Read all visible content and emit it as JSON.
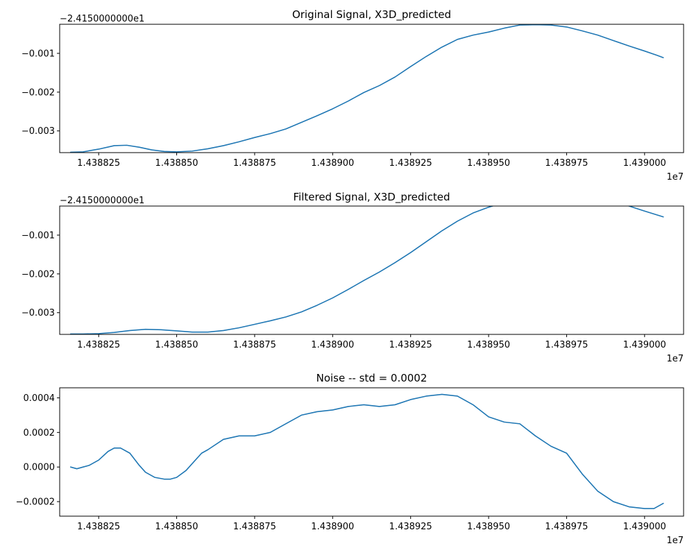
{
  "figure": {
    "line_color": "#1f77b4",
    "background": "#ffffff",
    "grid": false
  },
  "chart_data": [
    {
      "type": "line",
      "title": "Original Signal, X3D_predicted",
      "xlabel": "",
      "ylabel": "",
      "x_offset_label": "1e7",
      "y_offset_label": "−2.4150000000e1",
      "x_scale": 10000000,
      "y_offset": -24.15,
      "xlim": [
        1.4388125,
        1.4390125
      ],
      "ylim": [
        -0.00356,
        -0.00025
      ],
      "x_ticks": [
        1.438825,
        1.43885,
        1.438875,
        1.4389,
        1.438925,
        1.43895,
        1.438975,
        1.439
      ],
      "x_tick_labels": [
        "1.438825",
        "1.438850",
        "1.438875",
        "1.438900",
        "1.438925",
        "1.438950",
        "1.438975",
        "1.439000"
      ],
      "y_ticks": [
        -0.003,
        -0.002,
        -0.001
      ],
      "y_tick_labels": [
        "−0.003",
        "−0.002",
        "−0.001"
      ],
      "series": [
        {
          "x": [
            1.438816,
            1.43882,
            1.438825,
            1.43883,
            1.438834,
            1.438838,
            1.438842,
            1.438846,
            1.43885,
            1.438855,
            1.43886,
            1.438865,
            1.43887,
            1.438875,
            1.43888,
            1.438885,
            1.43889,
            1.438895,
            1.4389,
            1.438905,
            1.43891,
            1.438915,
            1.43892,
            1.438925,
            1.43893,
            1.438935,
            1.43894,
            1.438945,
            1.43895,
            1.438955,
            1.43896,
            1.438965,
            1.43897,
            1.438975,
            1.43898,
            1.438985,
            1.43899,
            1.438995,
            1.439,
            1.439004,
            1.439006
          ],
          "y": [
            -0.00355,
            -0.00354,
            -0.00347,
            -0.00338,
            -0.00337,
            -0.00342,
            -0.00349,
            -0.00353,
            -0.00354,
            -0.00352,
            -0.00346,
            -0.00338,
            -0.00328,
            -0.00317,
            -0.00307,
            -0.00295,
            -0.00278,
            -0.00261,
            -0.00243,
            -0.00223,
            -0.00201,
            -0.00183,
            -0.00161,
            -0.00134,
            -0.00108,
            -0.00084,
            -0.00064,
            -0.00053,
            -0.00045,
            -0.00035,
            -0.00027,
            -0.00026,
            -0.00027,
            -0.00032,
            -0.00042,
            -0.00053,
            -0.00067,
            -0.00081,
            -0.00094,
            -0.00105,
            -0.00111
          ]
        }
      ]
    },
    {
      "type": "line",
      "title": "Filtered Signal, X3D_predicted",
      "xlabel": "",
      "ylabel": "",
      "x_offset_label": "1e7",
      "y_offset_label": "−2.4150000000e1",
      "x_scale": 10000000,
      "y_offset": -24.15,
      "xlim": [
        1.4388125,
        1.4390125
      ],
      "ylim": [
        -0.00356,
        -0.00025
      ],
      "x_ticks": [
        1.438825,
        1.43885,
        1.438875,
        1.4389,
        1.438925,
        1.43895,
        1.438975,
        1.439
      ],
      "x_tick_labels": [
        "1.438825",
        "1.438850",
        "1.438875",
        "1.438900",
        "1.438925",
        "1.438950",
        "1.438975",
        "1.439000"
      ],
      "y_ticks": [
        -0.003,
        -0.002,
        -0.001
      ],
      "y_tick_labels": [
        "−0.003",
        "−0.002",
        "−0.001"
      ],
      "series": [
        {
          "x": [
            1.438816,
            1.43882,
            1.438825,
            1.43883,
            1.438835,
            1.43884,
            1.438845,
            1.43885,
            1.438855,
            1.43886,
            1.438865,
            1.43887,
            1.438875,
            1.43888,
            1.438885,
            1.43889,
            1.438895,
            1.4389,
            1.438905,
            1.43891,
            1.438915,
            1.43892,
            1.438925,
            1.43893,
            1.438935,
            1.43894,
            1.438945,
            1.43895,
            1.438955,
            1.43896,
            1.438965,
            1.43897,
            1.438975,
            1.43898,
            1.438985,
            1.43899,
            1.438995,
            1.439,
            1.439006
          ],
          "y": [
            -0.00355,
            -0.00355,
            -0.00354,
            -0.00351,
            -0.00346,
            -0.00343,
            -0.00344,
            -0.00347,
            -0.0035,
            -0.0035,
            -0.00346,
            -0.00339,
            -0.0033,
            -0.00321,
            -0.00311,
            -0.00298,
            -0.00281,
            -0.00262,
            -0.0024,
            -0.00217,
            -0.00195,
            -0.00171,
            -0.00145,
            -0.00117,
            -0.00089,
            -0.00064,
            -0.00043,
            -0.00028,
            -0.00016,
            -8e-05,
            -2e-05,
            1e-05,
            2e-05,
            1e-05,
            -5e-05,
            -0.00014,
            -0.00025,
            -0.00038,
            -0.00053
          ]
        }
      ]
    },
    {
      "type": "line",
      "title": "Noise -- std = 0.0002",
      "xlabel": "",
      "ylabel": "",
      "x_offset_label": "1e7",
      "y_offset_label": "",
      "x_scale": 10000000,
      "y_offset": 0,
      "xlim": [
        1.4388125,
        1.4390125
      ],
      "ylim": [
        -0.000284,
        0.000458
      ],
      "x_ticks": [
        1.438825,
        1.43885,
        1.438875,
        1.4389,
        1.438925,
        1.43895,
        1.438975,
        1.439
      ],
      "x_tick_labels": [
        "1.438825",
        "1.438850",
        "1.438875",
        "1.438900",
        "1.438925",
        "1.438950",
        "1.438975",
        "1.439000"
      ],
      "y_ticks": [
        -0.0002,
        0,
        0.0002,
        0.0004
      ],
      "y_tick_labels": [
        "−0.0002",
        "0.0000",
        "0.0002",
        "0.0004"
      ],
      "series": [
        {
          "x": [
            1.438816,
            1.438818,
            1.43882,
            1.438822,
            1.438825,
            1.438828,
            1.43883,
            1.438832,
            1.438835,
            1.438838,
            1.43884,
            1.438843,
            1.438846,
            1.438848,
            1.43885,
            1.438853,
            1.438856,
            1.438858,
            1.43886,
            1.438865,
            1.43887,
            1.438875,
            1.43888,
            1.438885,
            1.43889,
            1.438895,
            1.4389,
            1.438905,
            1.43891,
            1.438915,
            1.43892,
            1.438925,
            1.43893,
            1.438935,
            1.43894,
            1.438945,
            1.43895,
            1.438955,
            1.43896,
            1.438965,
            1.43897,
            1.438975,
            1.43898,
            1.438985,
            1.43899,
            1.438995,
            1.439,
            1.439003,
            1.439006
          ],
          "y": [
            0.0,
            -1e-05,
            0.0,
            1e-05,
            4e-05,
            9e-05,
            0.00011,
            0.00011,
            8e-05,
            1e-05,
            -3e-05,
            -6e-05,
            -7e-05,
            -7e-05,
            -6e-05,
            -2e-05,
            4e-05,
            8e-05,
            0.0001,
            0.00016,
            0.00018,
            0.00018,
            0.0002,
            0.00025,
            0.0003,
            0.00032,
            0.00033,
            0.00035,
            0.00036,
            0.00035,
            0.00036,
            0.00039,
            0.00041,
            0.00042,
            0.00041,
            0.00036,
            0.00029,
            0.00026,
            0.00025,
            0.00018,
            0.00012,
            8e-05,
            -4e-05,
            -0.00014,
            -0.0002,
            -0.00023,
            -0.00024,
            -0.00024,
            -0.00021
          ]
        }
      ]
    }
  ]
}
